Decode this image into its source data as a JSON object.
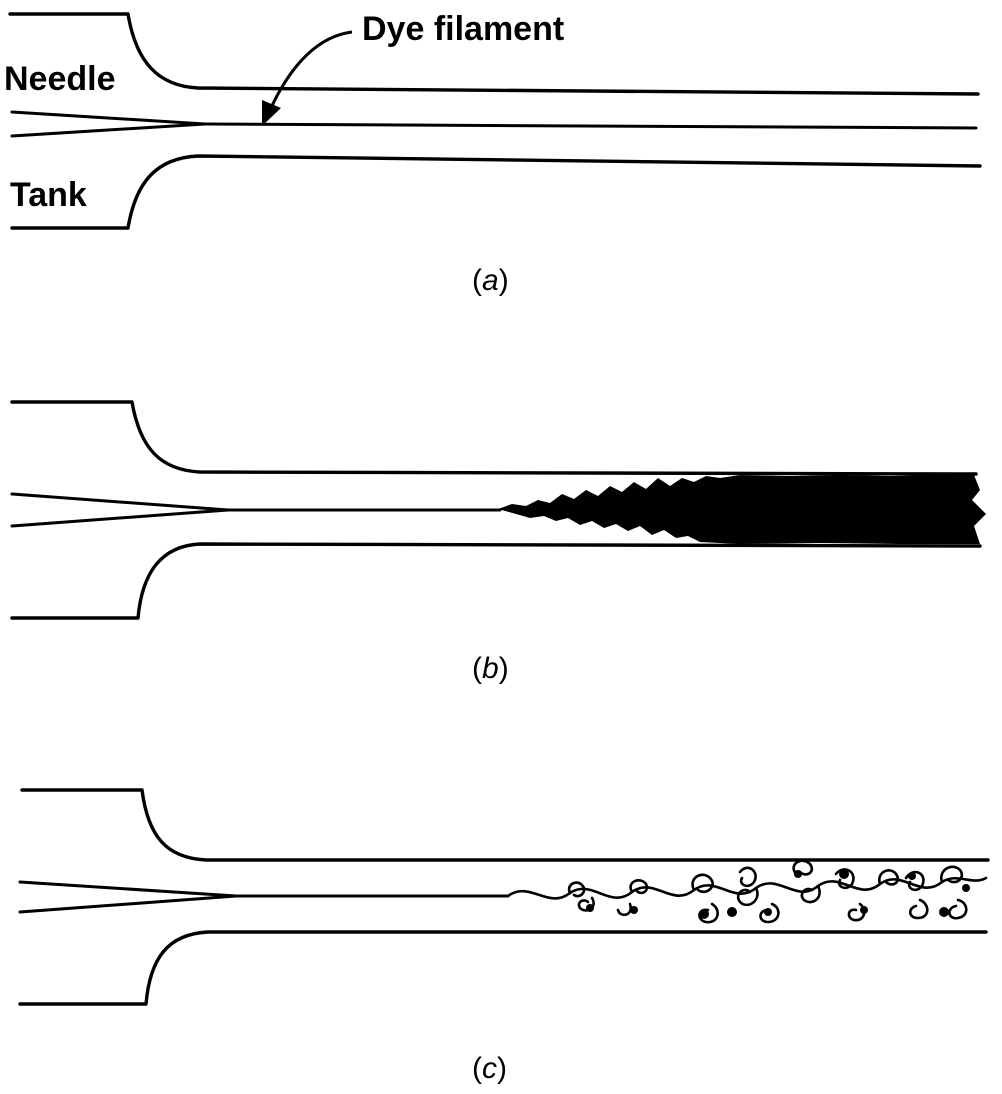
{
  "labels": {
    "needle": "Needle",
    "tank": "Tank",
    "dye_filament": "Dye filament"
  },
  "panels": [
    {
      "id": "a",
      "caption_open": "(",
      "caption_letter": "a",
      "caption_close": ")"
    },
    {
      "id": "b",
      "caption_open": "(",
      "caption_letter": "b",
      "caption_close": ")"
    },
    {
      "id": "c",
      "caption_open": "(",
      "caption_letter": "c",
      "caption_close": ")"
    }
  ],
  "colors": {
    "ink": "#000000",
    "paper": "#ffffff"
  }
}
